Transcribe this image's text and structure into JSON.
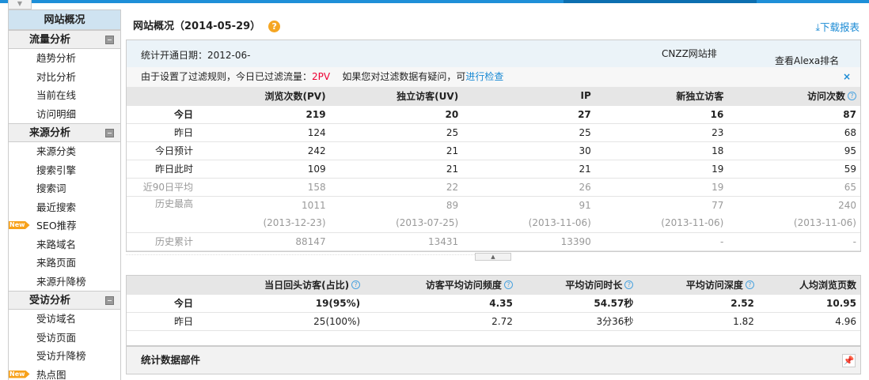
{
  "sidebar": {
    "overview": "网站概况",
    "sections": [
      {
        "title": "流量分析",
        "items": [
          {
            "label": "趋势分析"
          },
          {
            "label": "对比分析"
          },
          {
            "label": "当前在线"
          },
          {
            "label": "访问明细"
          }
        ]
      },
      {
        "title": "来源分析",
        "items": [
          {
            "label": "来源分类"
          },
          {
            "label": "搜索引擎"
          },
          {
            "label": "搜索词"
          },
          {
            "label": "最近搜索"
          },
          {
            "label": "SEO推荐",
            "badge": "New"
          },
          {
            "label": "来路域名"
          },
          {
            "label": "来路页面"
          },
          {
            "label": "来源升降榜"
          }
        ]
      },
      {
        "title": "受访分析",
        "items": [
          {
            "label": "受访域名"
          },
          {
            "label": "受访页面"
          },
          {
            "label": "受访升降榜"
          },
          {
            "label": "热点图",
            "badge": "New"
          }
        ]
      }
    ]
  },
  "header": {
    "title": "网站概况（2014-05-29）",
    "help": "?",
    "download": "下载报表"
  },
  "info": {
    "start_date": "统计开通日期：2012-06-",
    "cnzz_rank": "CNZZ网站排",
    "alexa": "查看Alexa排名"
  },
  "filter": {
    "text": "由于设置了过滤规则，今日已过滤流量：",
    "count": "2PV",
    "question": "如果您对过滤数据有疑问，可",
    "link": "进行检查",
    "close": "×"
  },
  "table1": {
    "headers": [
      "",
      "浏览次数(PV)",
      "独立访客(UV)",
      "IP",
      "新独立访客",
      "访问次数"
    ],
    "rows": [
      {
        "label": "今日",
        "values": [
          "219",
          "20",
          "27",
          "16",
          "87"
        ]
      },
      {
        "label": "昨日",
        "values": [
          "124",
          "25",
          "25",
          "23",
          "68"
        ]
      },
      {
        "label": "今日预计",
        "values": [
          "242",
          "21",
          "30",
          "18",
          "95"
        ]
      },
      {
        "label": "昨日此时",
        "values": [
          "109",
          "21",
          "21",
          "19",
          "59"
        ]
      },
      {
        "label": "近90日平均",
        "values": [
          "158",
          "22",
          "26",
          "19",
          "65"
        ]
      },
      {
        "label": "历史最高",
        "values": [
          "1011",
          "89",
          "91",
          "77",
          "240"
        ],
        "dates": [
          "(2013-12-23)",
          "(2013-07-25)",
          "(2013-11-06)",
          "(2013-11-06)",
          "(2013-11-06)"
        ]
      },
      {
        "label": "历史累计",
        "values": [
          "88147",
          "13431",
          "13390",
          "-",
          "-"
        ]
      }
    ]
  },
  "table2": {
    "headers": [
      "",
      "当日回头访客(占比)",
      "访客平均访问频度",
      "平均访问时长",
      "平均访问深度",
      "人均浏览页数"
    ],
    "rows": [
      {
        "label": "今日",
        "values": [
          "19(95%)",
          "4.35",
          "54.57秒",
          "2.52",
          "10.95"
        ]
      },
      {
        "label": "昨日",
        "values": [
          "25(100%)",
          "2.72",
          "3分36秒",
          "1.82",
          "4.96"
        ]
      }
    ]
  },
  "footer": {
    "title": "统计数据部件"
  }
}
